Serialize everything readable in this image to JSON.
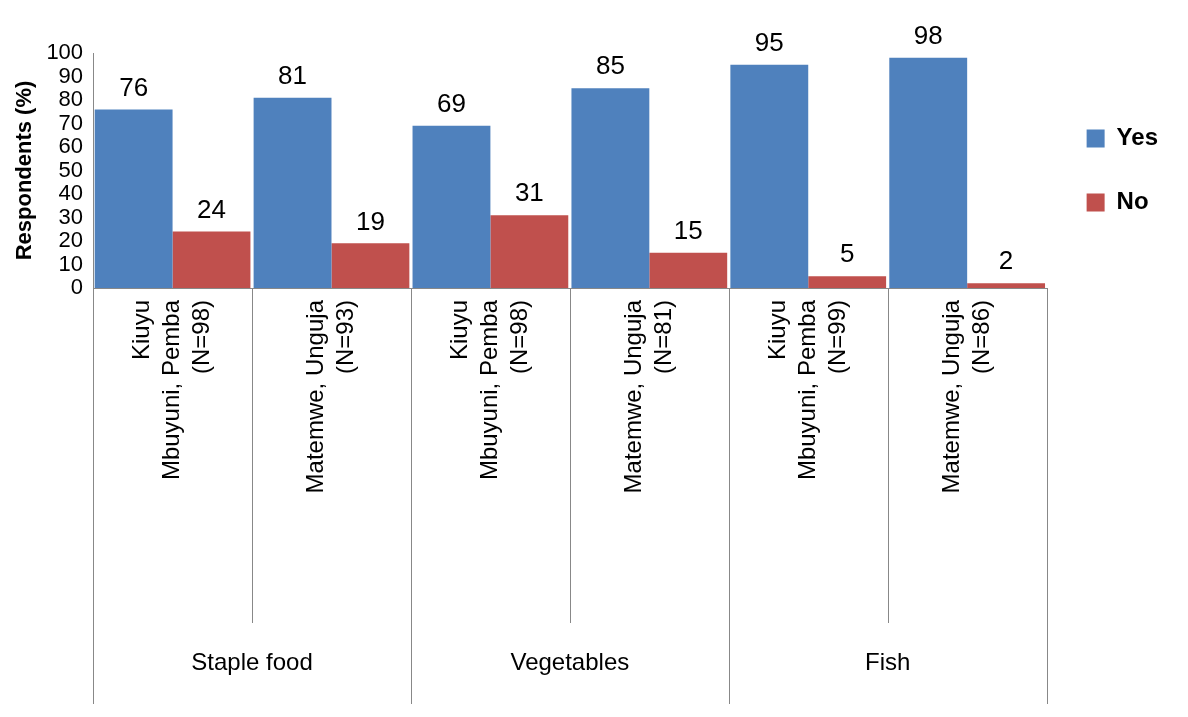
{
  "chart_data": {
    "type": "bar",
    "ylabel": "Respondents (%)",
    "categories": [
      "Kiuyu\nMbuyuni, Pemba\n(N=98)",
      "Matemwe, Unguja\n(N=93)",
      "Kiuyu\nMbuyuni, Pemba\n(N=98)",
      "Matemwe, Unguja\n(N=81)",
      "Kiuyu\nMbuyuni, Pemba\n(N=99)",
      "Matemwe, Unguja\n(N=86)"
    ],
    "annotations": [
      "Staple food",
      "Vegetables",
      "Fish"
    ],
    "series": [
      {
        "name": "Yes",
        "color": "#4f81bd",
        "values": [
          76,
          81,
          69,
          85,
          95,
          98
        ]
      },
      {
        "name": "No",
        "color": "#c0504d",
        "values": [
          24,
          19,
          31,
          15,
          5,
          2
        ]
      }
    ],
    "ylim": [
      0,
      100
    ],
    "yticks": [
      0,
      10,
      20,
      30,
      40,
      50,
      60,
      70,
      80,
      90,
      100
    ],
    "grid": false,
    "legend": "right",
    "data_labels": true
  }
}
